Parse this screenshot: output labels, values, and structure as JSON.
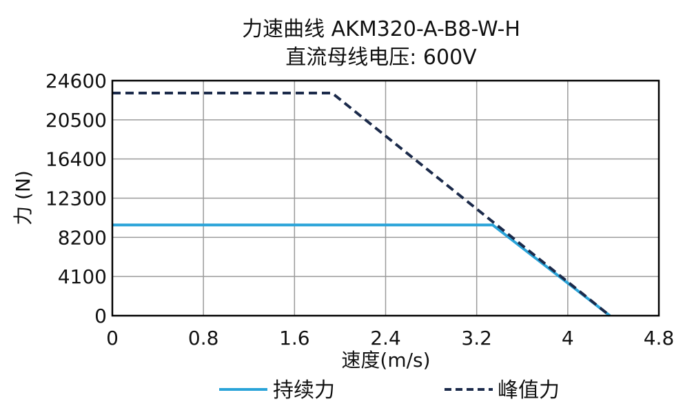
{
  "chart_data": {
    "type": "line",
    "title": "力速曲线 AKM320-A-B8-W-H",
    "subtitle": "直流母线电压: 600V",
    "xlabel": "速度(m/s)",
    "ylabel": "力 (N)",
    "xlim": [
      0,
      4.8
    ],
    "ylim": [
      0,
      24600
    ],
    "xticks": [
      "0",
      "0.8",
      "1.6",
      "2.4",
      "3.2",
      "4",
      "4.8"
    ],
    "yticks": [
      "0",
      "4100",
      "8200",
      "12300",
      "16400",
      "20500",
      "24600"
    ],
    "grid": true,
    "legend_position": "bottom",
    "series": [
      {
        "name": "持续力",
        "color": "#29a3d8",
        "style": "solid",
        "x": [
          0,
          3.34,
          4.37
        ],
        "y": [
          9500,
          9500,
          0
        ]
      },
      {
        "name": "峰值力",
        "color": "#1b2a4a",
        "style": "dashed",
        "x": [
          0,
          1.93,
          4.37
        ],
        "y": [
          23300,
          23300,
          0
        ]
      }
    ]
  }
}
